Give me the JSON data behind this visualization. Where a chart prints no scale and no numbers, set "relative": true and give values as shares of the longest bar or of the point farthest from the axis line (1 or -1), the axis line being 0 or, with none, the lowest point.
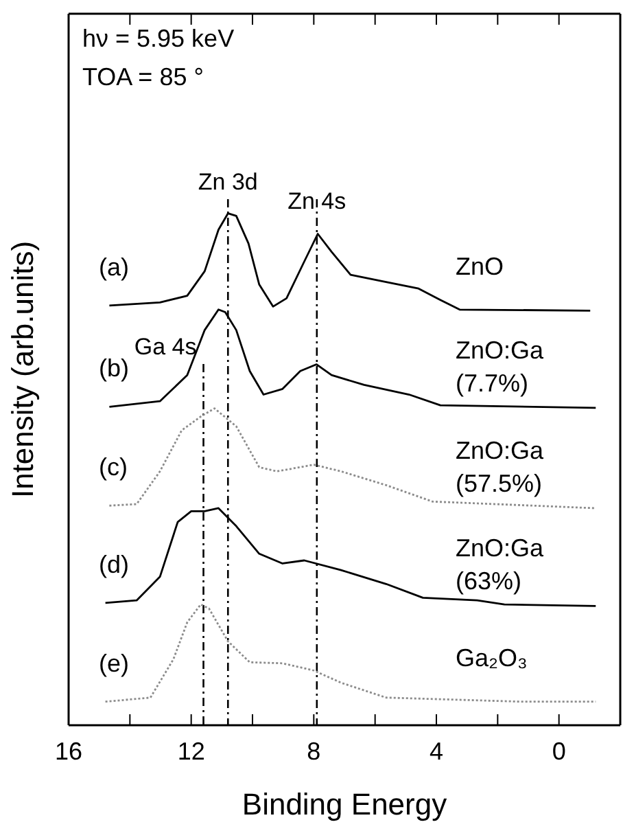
{
  "chart_data": {
    "type": "line",
    "relative": true,
    "xlabel": "Binding Energy",
    "ylabel": "Intensity (arb.units)",
    "xlim": [
      16,
      -2
    ],
    "xticks": [
      16,
      {
        "value": 14,
        "label": null
      },
      12,
      {
        "value": 10,
        "label": null
      },
      8,
      {
        "value": 6,
        "label": null
      },
      4,
      {
        "value": 2,
        "label": null
      },
      0
    ],
    "grid": false,
    "marker": "none",
    "series": [
      {
        "name": "ZnO",
        "color": "#000000",
        "x": [
          14.67,
          13.02,
          12.13,
          11.56,
          11.11,
          10.8,
          10.53,
          10.13,
          9.78,
          9.33,
          8.89,
          8.31,
          7.87,
          7.42,
          6.8,
          5.64,
          4.58,
          3.87,
          3.24,
          -1.02
        ],
        "values": [
          0.82,
          0.826,
          0.839,
          0.887,
          0.968,
          1.0,
          0.995,
          0.941,
          0.861,
          0.818,
          0.834,
          0.906,
          0.96,
          0.925,
          0.88,
          0.866,
          0.853,
          0.831,
          0.812,
          0.81
        ]
      },
      {
        "name": "ZnO:Ga (7.7%)",
        "color": "#000000",
        "x": [
          14.67,
          13.02,
          12.13,
          11.56,
          11.11,
          10.89,
          10.53,
          10.09,
          9.64,
          9.02,
          8.44,
          7.91,
          7.42,
          6.36,
          4.89,
          3.87,
          -1.2
        ],
        "values": [
          0.622,
          0.633,
          0.684,
          0.772,
          0.812,
          0.807,
          0.772,
          0.692,
          0.646,
          0.657,
          0.692,
          0.705,
          0.684,
          0.665,
          0.646,
          0.625,
          0.62
        ]
      },
      {
        "name": "ZnO:Ga (57.5%)",
        "color": "#8c8c8c",
        "line_style": "dotted",
        "x": [
          14.67,
          13.78,
          13.02,
          12.31,
          11.69,
          11.24,
          10.53,
          9.78,
          9.2,
          8.0,
          7.11,
          5.64,
          4.13,
          -1.2
        ],
        "values": [
          0.429,
          0.432,
          0.496,
          0.576,
          0.603,
          0.619,
          0.584,
          0.504,
          0.496,
          0.509,
          0.496,
          0.469,
          0.437,
          0.424
        ]
      },
      {
        "name": "ZnO:Ga (63%)",
        "color": "#000000",
        "x": [
          14.8,
          13.78,
          13.02,
          12.44,
          12.0,
          11.56,
          11.11,
          10.53,
          9.78,
          9.02,
          8.31,
          7.11,
          5.64,
          4.44,
          2.67,
          1.78,
          -1.2
        ],
        "values": [
          0.239,
          0.244,
          0.29,
          0.397,
          0.418,
          0.418,
          0.424,
          0.389,
          0.335,
          0.316,
          0.322,
          0.303,
          0.276,
          0.249,
          0.244,
          0.236,
          0.233
        ]
      },
      {
        "name": "Ga₂O₃",
        "color": "#8c8c8c",
        "line_style": "dotted",
        "x": [
          14.8,
          13.33,
          12.58,
          12.13,
          11.69,
          11.42,
          10.8,
          10.09,
          9.02,
          8.0,
          7.11,
          5.64,
          1.2,
          -1.2
        ],
        "values": [
          0.046,
          0.054,
          0.129,
          0.201,
          0.236,
          0.228,
          0.164,
          0.123,
          0.121,
          0.107,
          0.083,
          0.054,
          0.046,
          0.046
        ]
      }
    ],
    "ref_lines": [
      {
        "axis": "x",
        "value": 10.8,
        "label": "Zn 3d",
        "line_style": "dashed"
      },
      {
        "axis": "x",
        "value": 7.9,
        "label": "Zn 4s",
        "line_style": "dashed"
      },
      {
        "axis": "x",
        "value": 11.6,
        "label": "Ga 4s",
        "line_style": "dashed"
      }
    ],
    "annotations": [
      "hν = 5.95 keV",
      "TOA = 85 °",
      "(a)",
      "(b)",
      "(c)",
      "(d)",
      "(e)"
    ]
  }
}
